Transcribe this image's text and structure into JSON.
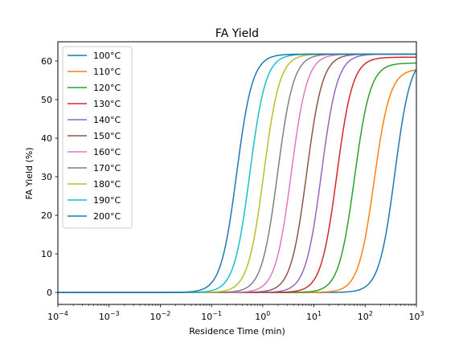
{
  "chart_data": {
    "type": "line",
    "title": "FA Yield",
    "xlabel": "Residence Time (min)",
    "ylabel": "FA Yield (%)",
    "xscale": "log",
    "xlim": [
      0.0001,
      1000
    ],
    "ylim": [
      -3.1,
      65
    ],
    "xticks": [
      {
        "value": 0.0001,
        "base": "10",
        "exp": "−4"
      },
      {
        "value": 0.001,
        "base": "10",
        "exp": "−3"
      },
      {
        "value": 0.01,
        "base": "10",
        "exp": "−2"
      },
      {
        "value": 0.1,
        "base": "10",
        "exp": "−1"
      },
      {
        "value": 1,
        "base": "10",
        "exp": "0"
      },
      {
        "value": 10,
        "base": "10",
        "exp": "1"
      },
      {
        "value": 100,
        "base": "10",
        "exp": "2"
      },
      {
        "value": 1000,
        "base": "10",
        "exp": "3"
      }
    ],
    "yticks": [
      0,
      10,
      20,
      30,
      40,
      50,
      60
    ],
    "grid": false,
    "legend_position": "upper left",
    "series": [
      {
        "name": "100°C",
        "color": "#1f77b4",
        "plateau": 61.8,
        "t_half": 380,
        "slope": 2.8
      },
      {
        "name": "110°C",
        "color": "#ff7f0e",
        "plateau": 58.0,
        "t_half": 150,
        "slope": 2.8
      },
      {
        "name": "120°C",
        "color": "#2ca02c",
        "plateau": 59.5,
        "t_half": 62,
        "slope": 2.8
      },
      {
        "name": "130°C",
        "color": "#d62728",
        "plateau": 61.0,
        "t_half": 28,
        "slope": 2.8
      },
      {
        "name": "140°C",
        "color": "#9467bd",
        "plateau": 61.8,
        "t_half": 14,
        "slope": 2.8
      },
      {
        "name": "150°C",
        "color": "#8c564b",
        "plateau": 61.8,
        "t_half": 7.2,
        "slope": 2.8
      },
      {
        "name": "160°C",
        "color": "#e377c2",
        "plateau": 61.8,
        "t_half": 3.6,
        "slope": 2.8
      },
      {
        "name": "170°C",
        "color": "#7f7f7f",
        "plateau": 61.8,
        "t_half": 1.95,
        "slope": 2.8
      },
      {
        "name": "180°C",
        "color": "#bcbd22",
        "plateau": 61.8,
        "t_half": 1.05,
        "slope": 2.8
      },
      {
        "name": "190°C",
        "color": "#17becf",
        "plateau": 61.8,
        "t_half": 0.56,
        "slope": 2.8
      },
      {
        "name": "200°C",
        "color": "#1f77b4",
        "plateau": 61.8,
        "t_half": 0.31,
        "slope": 2.8
      }
    ]
  }
}
